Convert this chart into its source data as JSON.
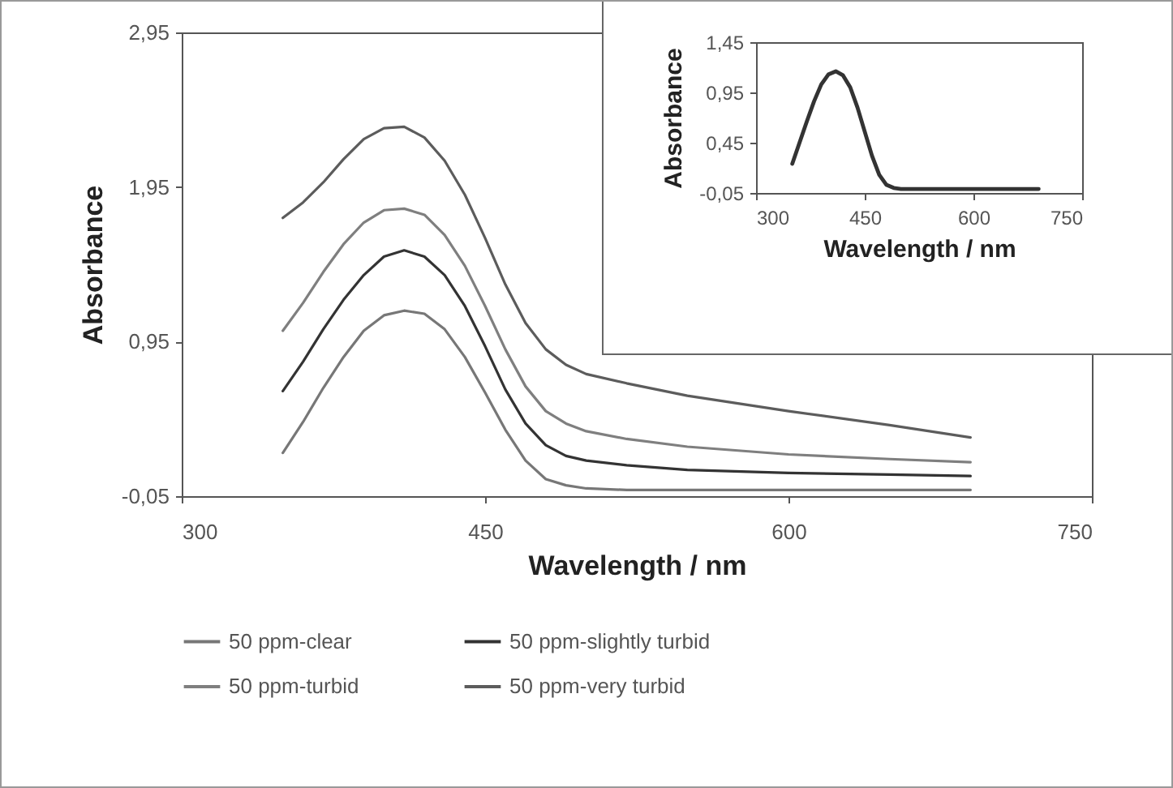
{
  "chart_data": [
    {
      "type": "line",
      "xlabel": "Wavelength / nm",
      "ylabel": "Absorbance",
      "x": [
        350,
        360,
        370,
        380,
        390,
        400,
        410,
        420,
        430,
        440,
        450,
        460,
        470,
        480,
        490,
        500,
        520,
        550,
        600,
        650,
        690
      ],
      "xlim": [
        300,
        750
      ],
      "ylim": [
        -0.05,
        2.95
      ],
      "xticks": [
        300,
        450,
        600,
        750
      ],
      "yticks": [
        {
          "value": -0.05,
          "label": "-0,05"
        },
        {
          "value": 0.95,
          "label": "0,95"
        },
        {
          "value": 1.95,
          "label": "1,95"
        },
        {
          "value": 2.95,
          "label": "2,95"
        }
      ],
      "grid": false,
      "legend": "bottom",
      "line_style": "solid",
      "series": [
        {
          "name": "50 ppm-clear",
          "color": "#777777",
          "values": [
            0.23,
            0.43,
            0.65,
            0.85,
            1.02,
            1.12,
            1.15,
            1.13,
            1.03,
            0.85,
            0.62,
            0.38,
            0.18,
            0.06,
            0.02,
            0.0,
            -0.01,
            -0.01,
            -0.01,
            -0.01,
            -0.01
          ]
        },
        {
          "name": "50 ppm-slightly turbid",
          "color": "#333333",
          "values": [
            0.63,
            0.82,
            1.03,
            1.22,
            1.38,
            1.5,
            1.54,
            1.5,
            1.38,
            1.18,
            0.92,
            0.64,
            0.42,
            0.28,
            0.21,
            0.18,
            0.15,
            0.12,
            0.1,
            0.09,
            0.08
          ]
        },
        {
          "name": "50 ppm-turbid",
          "color": "#7f7f7f",
          "values": [
            1.02,
            1.2,
            1.4,
            1.58,
            1.72,
            1.8,
            1.81,
            1.77,
            1.64,
            1.44,
            1.18,
            0.9,
            0.66,
            0.5,
            0.42,
            0.37,
            0.32,
            0.27,
            0.22,
            0.19,
            0.17
          ]
        },
        {
          "name": "50 ppm-very turbid",
          "color": "#5c5c5c",
          "values": [
            1.75,
            1.85,
            1.98,
            2.13,
            2.26,
            2.33,
            2.34,
            2.27,
            2.12,
            1.9,
            1.62,
            1.32,
            1.07,
            0.9,
            0.8,
            0.74,
            0.68,
            0.6,
            0.5,
            0.41,
            0.33
          ]
        }
      ]
    },
    {
      "type": "line",
      "xlabel": "Wavelength / nm",
      "ylabel": "Absorbance",
      "x": [
        350,
        360,
        370,
        380,
        390,
        400,
        410,
        420,
        430,
        440,
        450,
        460,
        470,
        480,
        490,
        500,
        520,
        550,
        600,
        650,
        690
      ],
      "xlim": [
        300,
        750
      ],
      "ylim": [
        -0.05,
        1.45
      ],
      "xticks": [
        300,
        450,
        600,
        750
      ],
      "yticks": [
        {
          "value": -0.05,
          "label": "-0,05"
        },
        {
          "value": 0.45,
          "label": "0,45"
        },
        {
          "value": 0.95,
          "label": "0,95"
        },
        {
          "value": 1.45,
          "label": "1,45"
        }
      ],
      "grid": false,
      "line_style": "solid",
      "series": [
        {
          "color": "#333333",
          "values": [
            0.24,
            0.45,
            0.66,
            0.86,
            1.03,
            1.13,
            1.16,
            1.12,
            1.0,
            0.8,
            0.56,
            0.32,
            0.13,
            0.03,
            0.0,
            -0.01,
            -0.01,
            -0.01,
            -0.01,
            -0.01,
            -0.01
          ]
        }
      ]
    }
  ]
}
